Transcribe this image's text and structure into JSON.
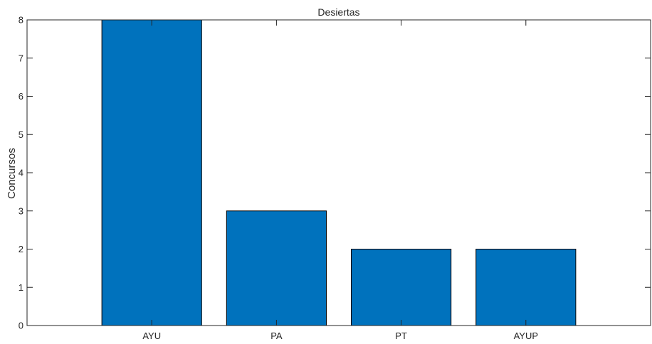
{
  "chart_data": {
    "type": "bar",
    "title": "Desiertas",
    "xlabel": "",
    "ylabel": "Concursos",
    "categories": [
      "AYU",
      "PA",
      "PT",
      "AYUP"
    ],
    "values": [
      8,
      3,
      2,
      2
    ],
    "ylim": [
      0,
      8
    ],
    "yticks": [
      0,
      1,
      2,
      3,
      4,
      5,
      6,
      7,
      8
    ],
    "xlim": [
      0,
      5
    ],
    "grid": false,
    "legend": "none",
    "bar_color": "#0072BD",
    "bar_edge_color": "#000000",
    "axis_color": "#262626"
  }
}
